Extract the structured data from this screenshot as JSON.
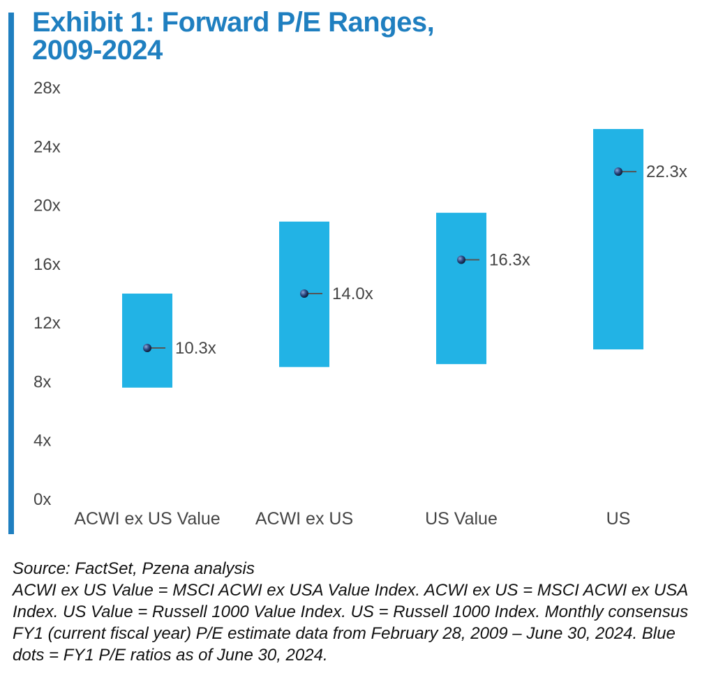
{
  "colors": {
    "accent": "#1f7fc0",
    "bar": "#22b3e5",
    "dot": "#1f3a6b",
    "text": "#444444"
  },
  "header": {
    "title_line1": "Exhibit 1: Forward P/E Ranges,",
    "title_line2": "2009-2024"
  },
  "chart_data": {
    "type": "bar",
    "categories": [
      "ACWI ex US Value",
      "ACWI ex US",
      "US Value",
      "US"
    ],
    "ranges": [
      {
        "low": 7.6,
        "high": 14.0
      },
      {
        "low": 9.0,
        "high": 18.9
      },
      {
        "low": 9.2,
        "high": 19.5
      },
      {
        "low": 10.2,
        "high": 25.2
      }
    ],
    "current": [
      10.3,
      14.0,
      16.3,
      22.3
    ],
    "current_labels": [
      "10.3x",
      "14.0x",
      "16.3x",
      "22.3x"
    ],
    "yticks": [
      0,
      4,
      8,
      12,
      16,
      20,
      24,
      28
    ],
    "ytick_labels": [
      "0x",
      "4x",
      "8x",
      "12x",
      "16x",
      "20x",
      "24x",
      "28x"
    ],
    "ylim": [
      0,
      28
    ],
    "title": "Exhibit 1: Forward P/E Ranges, 2009-2024",
    "grid": false
  },
  "footer": {
    "source": "Source: FactSet, Pzena analysis",
    "note": "ACWI ex US Value = MSCI ACWI ex USA Value Index. ACWI ex US = MSCI ACWI ex USA Index. US Value = Russell 1000 Value Index. US = Russell 1000 Index. Monthly consensus FY1 (current fiscal year) P/E estimate data from February 28, 2009 – June 30, 2024. Blue dots = FY1 P/E ratios as of June 30, 2024."
  }
}
